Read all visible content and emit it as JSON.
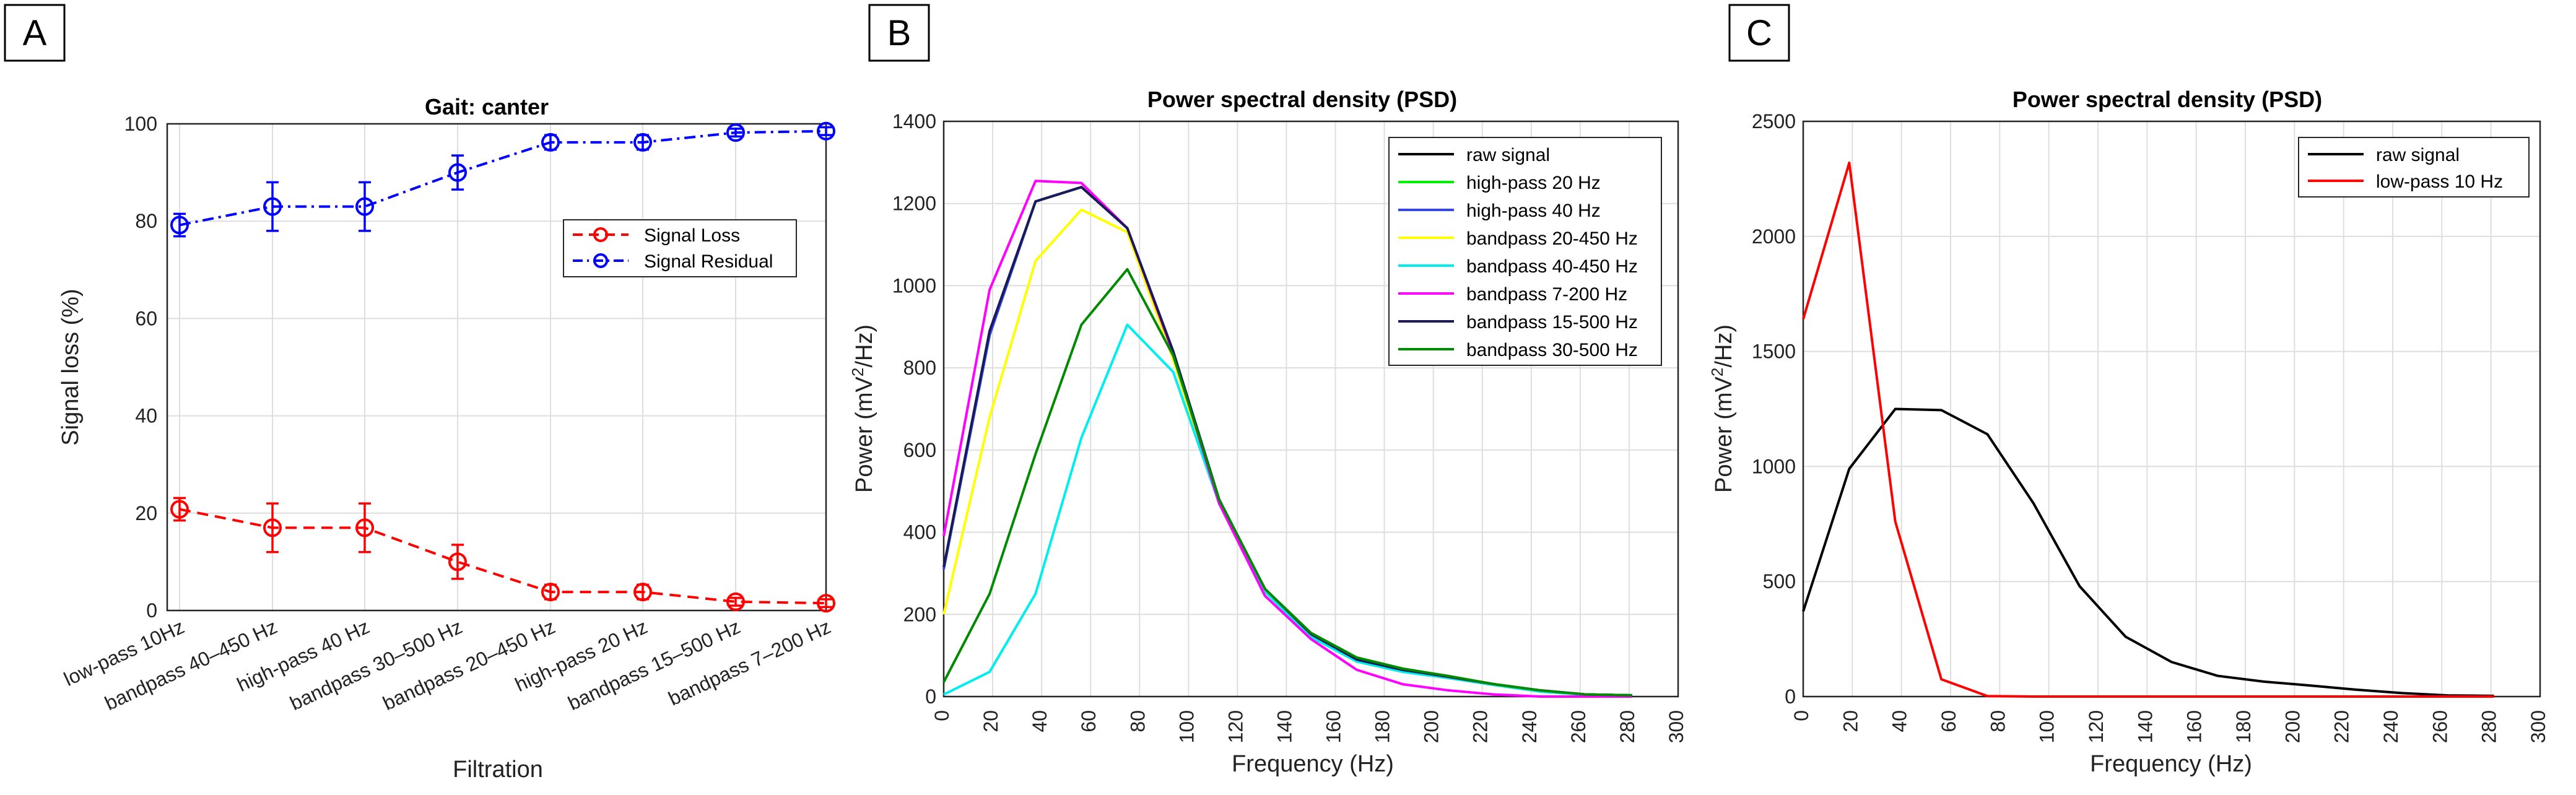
{
  "chart_data": [
    {
      "panel_label": "A",
      "type": "line",
      "title": "Gait: canter",
      "xlabel": "Filtration",
      "ylabel": "Signal loss (%)",
      "categories": [
        "low-pass 10Hz",
        "bandpass 40–450 Hz",
        "high-pass 40 Hz",
        "bandpass 30–500 Hz",
        "bandpass 20–450 Hz",
        "high-pass 20 Hz",
        "bandpass 15–500 Hz",
        "bandpass 7–200 Hz"
      ],
      "ylim": [
        0,
        100
      ],
      "yticks": [
        "0",
        "20",
        "40",
        "60",
        "80",
        "100"
      ],
      "grid": true,
      "legend_position": "right",
      "series": [
        {
          "name": "Signal Loss",
          "color": "#ff0000",
          "style": "dashed",
          "marker": "circle",
          "values": [
            20.8,
            17,
            17,
            10,
            3.8,
            3.8,
            1.8,
            1.5
          ],
          "errors": [
            2.3,
            5,
            5,
            3.5,
            1.5,
            1.5,
            0.8,
            0.8
          ]
        },
        {
          "name": "Signal Residual",
          "color": "#0000ff",
          "style": "dashdot",
          "marker": "circle",
          "values": [
            79.2,
            83,
            83,
            90,
            96.2,
            96.2,
            98.2,
            98.5
          ],
          "errors": [
            2.3,
            5,
            5,
            3.5,
            1.5,
            1.5,
            0.8,
            0.8
          ]
        }
      ]
    },
    {
      "panel_label": "B",
      "type": "line",
      "title": "Power spectral density (PSD)",
      "xlabel": "Frequency (Hz)",
      "ylabel": "Power (mV²/Hz)",
      "ylabel_main": "Power (mV",
      "ylabel_sup": "2",
      "ylabel_tail": "/Hz)",
      "xlim": [
        0,
        300
      ],
      "ylim": [
        0,
        1400
      ],
      "xticks": [
        "0",
        "20",
        "40",
        "60",
        "80",
        "100",
        "120",
        "140",
        "160",
        "180",
        "200",
        "220",
        "240",
        "260",
        "280",
        "300"
      ],
      "yticks": [
        "0",
        "200",
        "400",
        "600",
        "800",
        "1000",
        "1200",
        "1400"
      ],
      "grid": true,
      "legend_position": "top-right",
      "x": [
        0,
        18.75,
        37.5,
        56.25,
        75,
        93.75,
        112.5,
        131.25,
        150,
        168.75,
        187.5,
        206.25,
        225,
        243.75,
        262.5,
        281.25
      ],
      "series": [
        {
          "name": "raw signal",
          "color": "#000000",
          "values": [
            310,
            880,
            1205,
            1240,
            1140,
            840,
            480,
            260,
            150,
            90,
            65,
            48,
            30,
            15,
            5,
            3
          ]
        },
        {
          "name": "high-pass 20 Hz",
          "color": "#00ee00",
          "values": [
            310,
            880,
            1205,
            1240,
            1140,
            840,
            480,
            260,
            150,
            90,
            65,
            48,
            30,
            15,
            5,
            3
          ]
        },
        {
          "name": "high-pass 40 Hz",
          "color": "#3344ff",
          "values": [
            310,
            880,
            1205,
            1240,
            1140,
            840,
            480,
            260,
            150,
            90,
            65,
            48,
            30,
            15,
            5,
            3
          ]
        },
        {
          "name": "bandpass 20-450 Hz",
          "color": "#ffff00",
          "values": [
            200,
            680,
            1060,
            1185,
            1130,
            820,
            470,
            255,
            145,
            85,
            60,
            45,
            28,
            12,
            4,
            2
          ]
        },
        {
          "name": "bandpass 40-450 Hz",
          "color": "#00eeee",
          "values": [
            5,
            60,
            250,
            630,
            905,
            790,
            470,
            255,
            145,
            85,
            60,
            45,
            28,
            12,
            4,
            2
          ]
        },
        {
          "name": "bandpass 7-200 Hz",
          "color": "#ff00ff",
          "values": [
            390,
            990,
            1255,
            1250,
            1140,
            835,
            470,
            245,
            140,
            65,
            30,
            15,
            5,
            0,
            0,
            0
          ]
        },
        {
          "name": "bandpass 15-500 Hz",
          "color": "#1a1a5a",
          "values": [
            315,
            890,
            1205,
            1240,
            1140,
            840,
            480,
            262,
            152,
            90,
            65,
            48,
            30,
            15,
            5,
            3
          ]
        },
        {
          "name": "bandpass 30-500 Hz",
          "color": "#008a00",
          "values": [
            35,
            250,
            590,
            905,
            1040,
            830,
            480,
            262,
            155,
            95,
            68,
            50,
            30,
            15,
            5,
            3
          ]
        }
      ]
    },
    {
      "panel_label": "C",
      "type": "line",
      "title": "Power spectral density (PSD)",
      "xlabel": "Frequency (Hz)",
      "ylabel": "Power (mV²/Hz)",
      "ylabel_main": "Power (mV",
      "ylabel_sup": "2",
      "ylabel_tail": "/Hz)",
      "xlim": [
        0,
        300
      ],
      "ylim": [
        0,
        2500
      ],
      "xticks": [
        "0",
        "20",
        "40",
        "60",
        "80",
        "100",
        "120",
        "140",
        "160",
        "180",
        "200",
        "220",
        "240",
        "260",
        "280",
        "300"
      ],
      "yticks": [
        "0",
        "500",
        "1000",
        "1500",
        "2000",
        "2500"
      ],
      "grid": true,
      "legend_position": "top-right",
      "x": [
        0,
        18.75,
        37.5,
        56.25,
        75,
        93.75,
        112.5,
        131.25,
        150,
        168.75,
        187.5,
        206.25,
        225,
        243.75,
        262.5,
        281.25
      ],
      "series": [
        {
          "name": "raw signal",
          "color": "#000000",
          "values": [
            370,
            990,
            1250,
            1245,
            1140,
            840,
            480,
            260,
            150,
            90,
            65,
            48,
            30,
            15,
            5,
            3
          ]
        },
        {
          "name": "low-pass 10 Hz",
          "color": "#ff0000",
          "values": [
            1640,
            2320,
            760,
            75,
            2,
            0,
            0,
            0,
            0,
            0,
            0,
            0,
            0,
            0,
            0,
            0
          ]
        }
      ]
    }
  ]
}
